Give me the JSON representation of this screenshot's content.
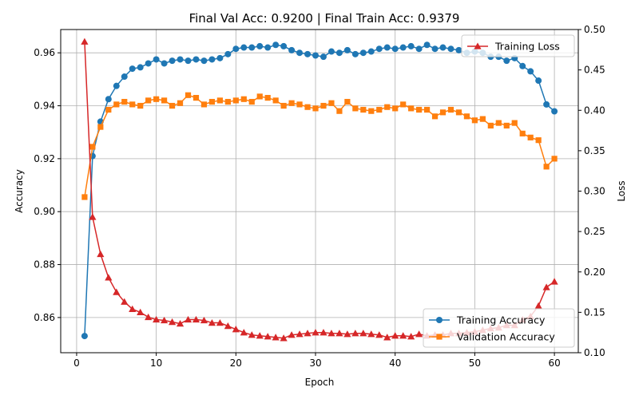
{
  "chart_data": {
    "type": "line",
    "title": "Final Val Acc: 0.9200 | Final Train Acc: 0.9379",
    "xlabel": "Epoch",
    "ylabel": "Accuracy",
    "y2label": "Loss",
    "xlim": [
      -2.0,
      63.0
    ],
    "ylim": [
      0.8467,
      0.9688
    ],
    "y2lim": [
      0.1,
      0.5
    ],
    "xticks": [
      0,
      10,
      20,
      30,
      40,
      50,
      60
    ],
    "yticks": [
      0.86,
      0.88,
      0.9,
      0.92,
      0.94,
      0.96
    ],
    "y2ticks": [
      0.1,
      0.15,
      0.2,
      0.25,
      0.3,
      0.35,
      0.4,
      0.45,
      0.5
    ],
    "grid": true,
    "legend_top": {
      "position": "upper right",
      "entries": [
        "Training Loss"
      ]
    },
    "legend_bottom": {
      "position": "lower right",
      "entries": [
        "Training Accuracy",
        "Validation Accuracy"
      ]
    },
    "x": [
      1,
      2,
      3,
      4,
      5,
      6,
      7,
      8,
      9,
      10,
      11,
      12,
      13,
      14,
      15,
      16,
      17,
      18,
      19,
      20,
      21,
      22,
      23,
      24,
      25,
      26,
      27,
      28,
      29,
      30,
      31,
      32,
      33,
      34,
      35,
      36,
      37,
      38,
      39,
      40,
      41,
      42,
      43,
      44,
      45,
      46,
      47,
      48,
      49,
      50,
      51,
      52,
      53,
      54,
      55,
      56,
      57,
      58,
      59,
      60
    ],
    "series": [
      {
        "name": "Training Accuracy",
        "axis": "left",
        "color": "#1f77b4",
        "marker": "circle",
        "values": [
          0.853,
          0.921,
          0.934,
          0.9425,
          0.9475,
          0.951,
          0.954,
          0.9545,
          0.956,
          0.9575,
          0.956,
          0.957,
          0.9575,
          0.957,
          0.9575,
          0.957,
          0.9575,
          0.958,
          0.9595,
          0.9615,
          0.962,
          0.962,
          0.9625,
          0.962,
          0.963,
          0.9625,
          0.961,
          0.96,
          0.9595,
          0.959,
          0.9585,
          0.9605,
          0.96,
          0.961,
          0.9595,
          0.96,
          0.9605,
          0.9615,
          0.962,
          0.9615,
          0.962,
          0.9625,
          0.9615,
          0.963,
          0.9615,
          0.962,
          0.9615,
          0.961,
          0.96,
          0.9605,
          0.96,
          0.9585,
          0.9585,
          0.957,
          0.958,
          0.955,
          0.953,
          0.9495,
          0.9405,
          0.9379
        ]
      },
      {
        "name": "Validation Accuracy",
        "axis": "left",
        "color": "#ff7f0e",
        "marker": "square",
        "values": [
          0.9055,
          0.9245,
          0.932,
          0.9385,
          0.9405,
          0.9415,
          0.9405,
          0.94,
          0.942,
          0.9425,
          0.942,
          0.94,
          0.941,
          0.944,
          0.943,
          0.9405,
          0.9415,
          0.942,
          0.9415,
          0.942,
          0.9425,
          0.9415,
          0.9435,
          0.943,
          0.942,
          0.94,
          0.941,
          0.9405,
          0.9395,
          0.939,
          0.94,
          0.941,
          0.938,
          0.9415,
          0.939,
          0.9385,
          0.938,
          0.9385,
          0.9395,
          0.939,
          0.9405,
          0.939,
          0.9385,
          0.9385,
          0.936,
          0.9375,
          0.9385,
          0.9375,
          0.936,
          0.9345,
          0.935,
          0.9325,
          0.9335,
          0.9325,
          0.9335,
          0.9295,
          0.928,
          0.927,
          0.917,
          0.92
        ]
      },
      {
        "name": "Training Loss",
        "axis": "right",
        "color": "#d62728",
        "marker": "triangle",
        "values": [
          0.485,
          0.268,
          0.222,
          0.193,
          0.175,
          0.163,
          0.154,
          0.15,
          0.144,
          0.141,
          0.14,
          0.138,
          0.136,
          0.141,
          0.141,
          0.14,
          0.137,
          0.137,
          0.133,
          0.129,
          0.125,
          0.122,
          0.121,
          0.12,
          0.119,
          0.118,
          0.122,
          0.123,
          0.124,
          0.125,
          0.125,
          0.124,
          0.124,
          0.123,
          0.124,
          0.124,
          0.123,
          0.122,
          0.119,
          0.121,
          0.121,
          0.12,
          0.123,
          0.121,
          0.122,
          0.122,
          0.124,
          0.124,
          0.125,
          0.126,
          0.128,
          0.13,
          0.131,
          0.134,
          0.134,
          0.141,
          0.145,
          0.158,
          0.181,
          0.188
        ]
      }
    ]
  }
}
